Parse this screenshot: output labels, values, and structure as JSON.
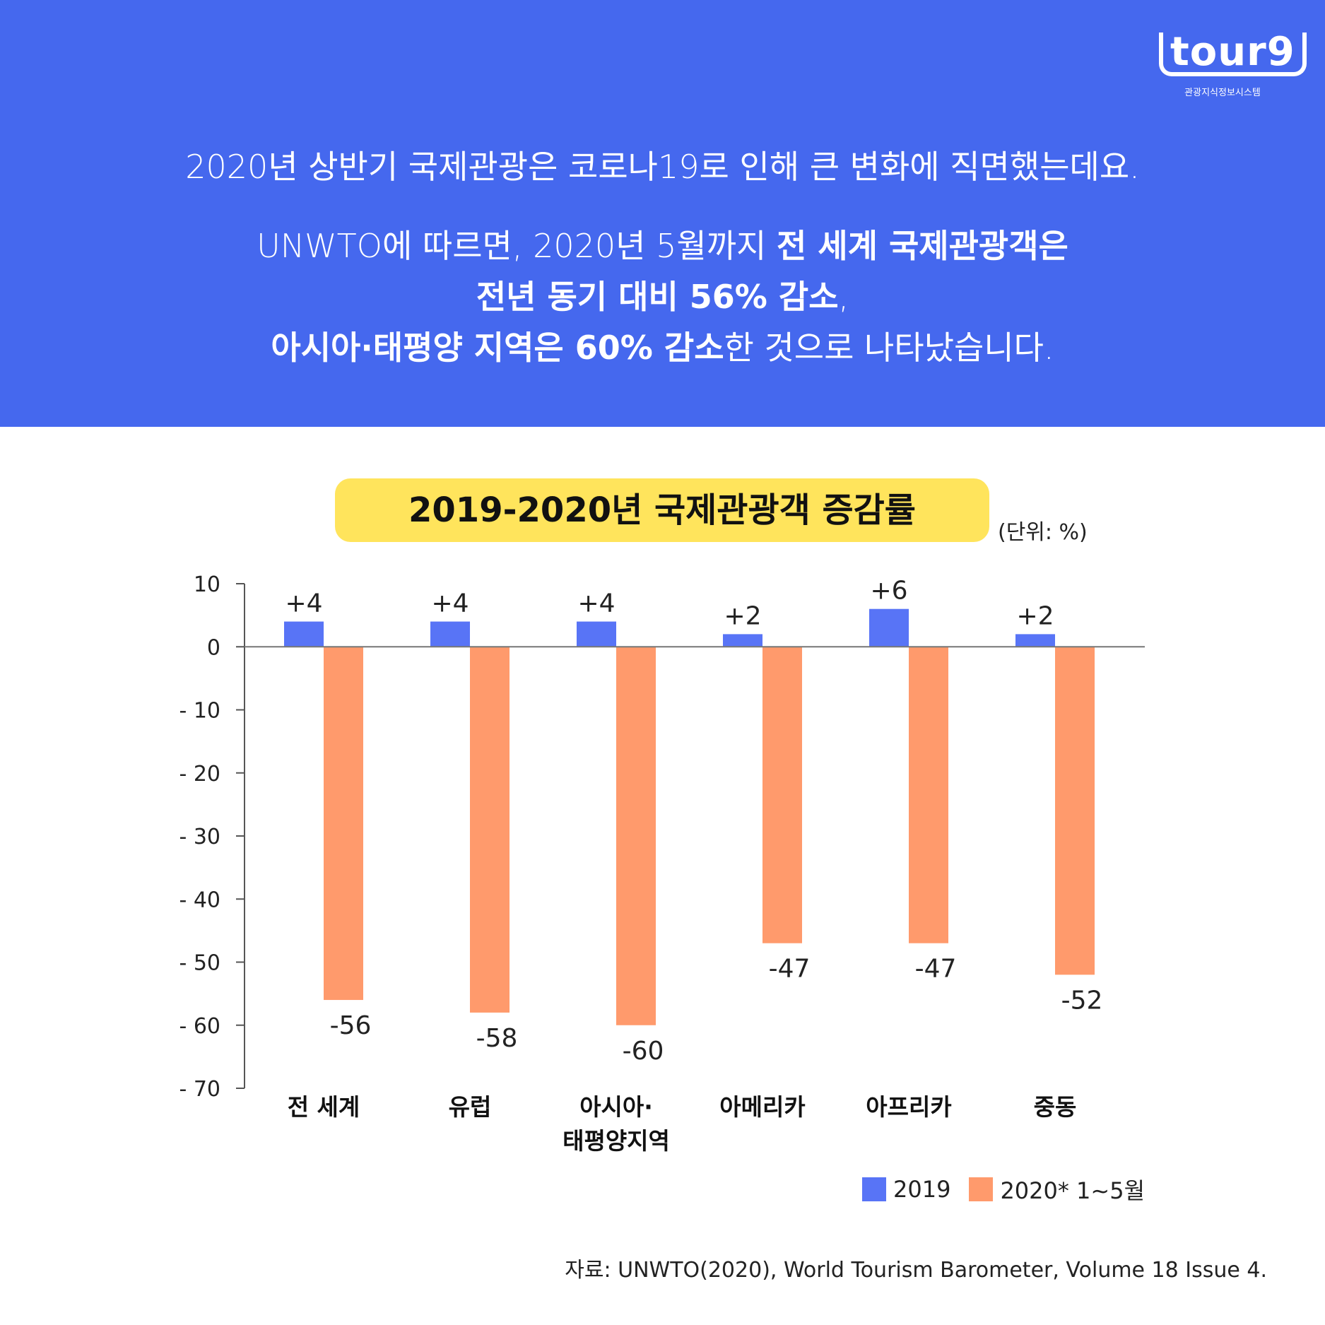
{
  "logo": {
    "mark": "tour9",
    "subtitle": "관광지식정보시스템"
  },
  "intro": {
    "line1": "2020년 상반기 국제관광은 코로나19로 인해 큰 변화에 직면했는데요.",
    "line2_plain": "UNWTO에 따르면, 2020년 5월까지 ",
    "line2_bold": "전 세계 국제관광객은",
    "line3_bold": "전년 동기 대비 56% 감소",
    "line3_plain": ",",
    "line4_bold": "아시아·태평양 지역은 60% 감소",
    "line4_plain": "한 것으로 나타났습니다."
  },
  "chart_data": {
    "type": "bar",
    "title": "2019-2020년 국제관광객 증감률",
    "unit": "(단위: %)",
    "categories": [
      "전 세계",
      "유럽",
      "아시아·\n태평양지역",
      "아메리카",
      "아프리카",
      "중동"
    ],
    "series": [
      {
        "name": "2019",
        "color": "#5874F6",
        "values": [
          4,
          4,
          4,
          2,
          6,
          2
        ],
        "labels": [
          "+4",
          "+4",
          "+4",
          "+2",
          "+6",
          "+2"
        ]
      },
      {
        "name": "2020*  1~5월",
        "color": "#FF9A6C",
        "values": [
          -56,
          -58,
          -60,
          -47,
          -47,
          -52
        ],
        "labels": [
          "-56",
          "-58",
          "-60",
          "-47",
          "-47",
          "-52"
        ]
      }
    ],
    "ylim": [
      -70,
      10
    ],
    "yticks": [
      10,
      0,
      -10,
      -20,
      -30,
      -40,
      -50,
      -60,
      -70
    ],
    "legend": "bottom-right",
    "grid": false
  },
  "source": "자료: UNWTO(2020), World Tourism Barometer, Volume 18 Issue 4."
}
